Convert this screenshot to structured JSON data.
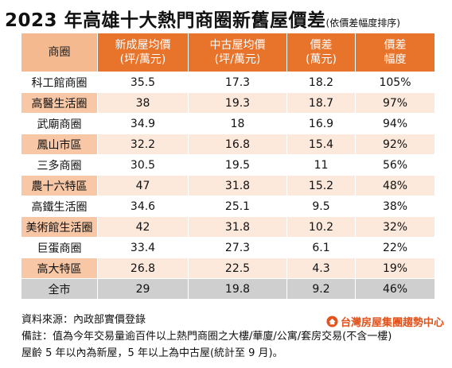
{
  "title": "2023 年高雄十大熱門商圈新舊屋價差",
  "subtitle": "(依價差幅度排序)",
  "chart_data": {
    "type": "table",
    "columns": [
      "商圈",
      "新成屋均價\n(坪/萬元)",
      "中古屋均價\n(坪/萬元)",
      "價差\n(萬元)",
      "價差\n幅度"
    ],
    "rows": [
      [
        "科工館商圈",
        "35.5",
        "17.3",
        "18.2",
        "105%"
      ],
      [
        "高醫生活圈",
        "38",
        "19.3",
        "18.7",
        "97%"
      ],
      [
        "武廟商圈",
        "34.9",
        "18",
        "16.9",
        "94%"
      ],
      [
        "鳳山市區",
        "32.2",
        "16.8",
        "15.4",
        "92%"
      ],
      [
        "三多商圈",
        "30.5",
        "19.5",
        "11",
        "56%"
      ],
      [
        "農十六特區",
        "47",
        "31.8",
        "15.2",
        "48%"
      ],
      [
        "高鐵生活圈",
        "34.6",
        "25.1",
        "9.5",
        "38%"
      ],
      [
        "美術館生活圈",
        "42",
        "31.8",
        "10.2",
        "32%"
      ],
      [
        "巨蛋商圈",
        "33.4",
        "27.3",
        "6.1",
        "22%"
      ],
      [
        "高大特區",
        "26.8",
        "22.5",
        "4.3",
        "19%"
      ]
    ],
    "total": [
      "全市",
      "29",
      "19.8",
      "9.2",
      "46%"
    ]
  },
  "footer": {
    "source": "資料來源：內政部實價登錄",
    "note1": "備註：值為今年交易量逾百件以上熱門商圈之大樓/華廈/公寓/套房交易(不含一樓)",
    "note2": "屋齡 5 年以內為新屋，5 年以上為中古屋(統計至 9 月)。"
  },
  "brand": {
    "name": "台灣房屋集團趨勢中心",
    "icon": "house-logo-icon",
    "color": "#e2521c"
  },
  "colors": {
    "header": "#e8732b",
    "header_first": "#f5b98f",
    "row_alt": "#fce9dc",
    "row_alt_first": "#f7c7a6",
    "total": "#cfcfcf"
  }
}
